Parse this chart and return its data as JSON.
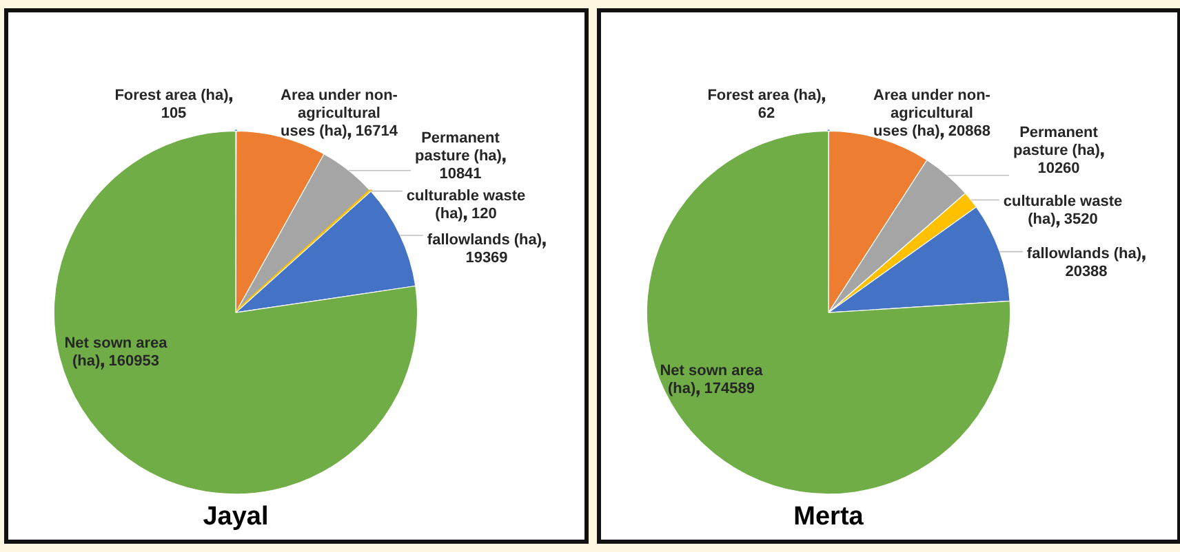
{
  "chart_data": [
    {
      "type": "pie",
      "title": "Jayal",
      "categories": [
        "Forest area (ha)",
        "Area under non-agricultural uses (ha)",
        "Permanent pasture (ha)",
        "culturable waste (ha)",
        "fallowlands (ha)",
        "Net sown area (ha)"
      ],
      "values": [
        105,
        16714,
        10841,
        120,
        19369,
        160953
      ],
      "colors": [
        "#5b9bd5",
        "#ed7d31",
        "#a5a5a5",
        "#ffc000",
        "#4472c4",
        "#70ad47"
      ],
      "data_labels": true
    },
    {
      "type": "pie",
      "title": "Merta",
      "categories": [
        "Forest area (ha)",
        "Area under non-agricultural uses (ha)",
        "Permanent pasture (ha)",
        "culturable waste (ha)",
        "fallowlands (ha)",
        "Net sown area (ha)"
      ],
      "values": [
        62,
        20868,
        10260,
        3520,
        20388,
        174589
      ],
      "colors": [
        "#5b9bd5",
        "#ed7d31",
        "#a5a5a5",
        "#ffc000",
        "#4472c4",
        "#70ad47"
      ],
      "data_labels": true
    }
  ]
}
